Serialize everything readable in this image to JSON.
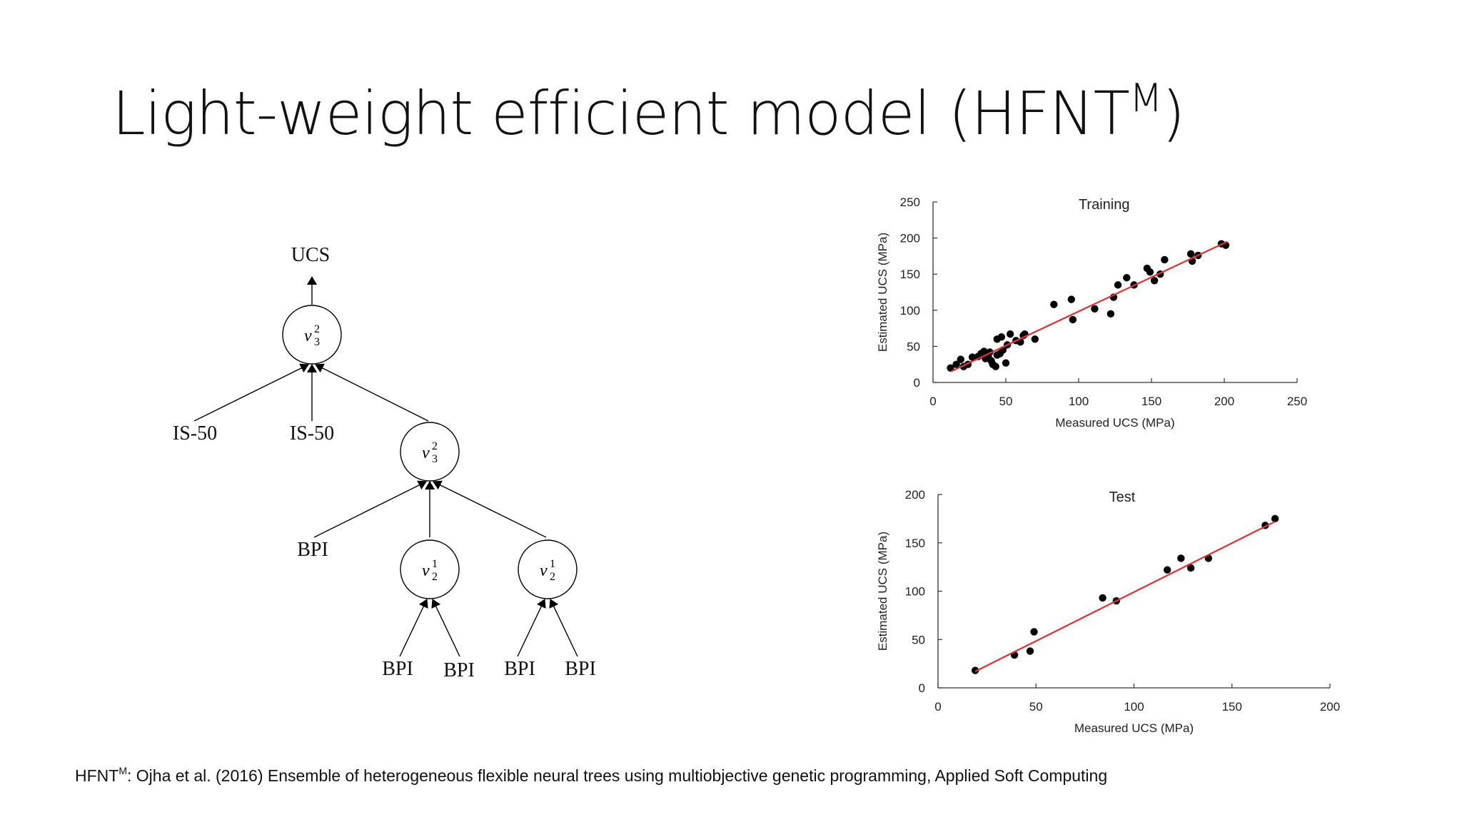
{
  "title": {
    "main": "Light-weight efficient model (HFNT",
    "sup": "M",
    "close": ")"
  },
  "tree": {
    "root_label": "UCS",
    "nodes": {
      "root": {
        "v": "v",
        "sup": "2",
        "sub": "3"
      },
      "mid": {
        "v": "v",
        "sup": "2",
        "sub": "3"
      },
      "left": {
        "v": "v",
        "sup": "1",
        "sub": "2"
      },
      "right": {
        "v": "v",
        "sup": "1",
        "sub": "2"
      }
    },
    "leaves": {
      "is1": "IS-50",
      "is2": "IS-50",
      "bpi_mid": "BPI",
      "bpi_l1": "BPI",
      "bpi_l2": "BPI",
      "bpi_r1": "BPI",
      "bpi_r2": "BPI"
    }
  },
  "chart_data": [
    {
      "type": "scatter",
      "title": "Training",
      "xlabel": "Measured UCS (MPa)",
      "ylabel": "Estimated UCS (MPa)",
      "xlim": [
        0,
        250
      ],
      "ylim": [
        0,
        250
      ],
      "xticks": [
        0,
        50,
        100,
        150,
        200,
        250
      ],
      "yticks": [
        0,
        50,
        100,
        150,
        200,
        250
      ],
      "fit_line": {
        "x": [
          12,
          202
        ],
        "y": [
          15,
          195
        ],
        "color": "#e53030"
      },
      "point_color": "#000000",
      "grid": false,
      "points": [
        [
          12,
          20
        ],
        [
          16,
          25
        ],
        [
          19,
          32
        ],
        [
          21,
          22
        ],
        [
          24,
          25
        ],
        [
          27,
          35
        ],
        [
          31,
          36
        ],
        [
          33,
          40
        ],
        [
          35,
          43
        ],
        [
          36,
          33
        ],
        [
          38,
          35
        ],
        [
          39,
          42
        ],
        [
          40,
          30
        ],
        [
          41,
          25
        ],
        [
          43,
          22
        ],
        [
          44,
          38
        ],
        [
          44,
          60
        ],
        [
          46,
          40
        ],
        [
          47,
          63
        ],
        [
          48,
          45
        ],
        [
          50,
          27
        ],
        [
          51,
          52
        ],
        [
          53,
          67
        ],
        [
          57,
          58
        ],
        [
          60,
          56
        ],
        [
          62,
          65
        ],
        [
          63,
          67
        ],
        [
          70,
          60
        ],
        [
          83,
          108
        ],
        [
          95,
          115
        ],
        [
          96,
          87
        ],
        [
          111,
          102
        ],
        [
          122,
          95
        ],
        [
          124,
          118
        ],
        [
          127,
          135
        ],
        [
          133,
          145
        ],
        [
          138,
          135
        ],
        [
          147,
          158
        ],
        [
          149,
          153
        ],
        [
          152,
          141
        ],
        [
          156,
          150
        ],
        [
          159,
          170
        ],
        [
          177,
          178
        ],
        [
          178,
          168
        ],
        [
          182,
          176
        ],
        [
          198,
          192
        ],
        [
          201,
          190
        ]
      ]
    },
    {
      "type": "scatter",
      "title": "Test",
      "xlabel": "Measured UCS (MPa)",
      "ylabel": "Estimated UCS (MPa)",
      "xlim": [
        0,
        200
      ],
      "ylim": [
        0,
        200
      ],
      "xticks": [
        0,
        50,
        100,
        150,
        200
      ],
      "yticks": [
        0,
        50,
        100,
        150,
        200
      ],
      "fit_line": {
        "x": [
          19,
          172
        ],
        "y": [
          17,
          172
        ],
        "color": "#e53030"
      },
      "point_color": "#000000",
      "grid": false,
      "points": [
        [
          19,
          18
        ],
        [
          39,
          34
        ],
        [
          47,
          38
        ],
        [
          49,
          58
        ],
        [
          84,
          93
        ],
        [
          91,
          90
        ],
        [
          117,
          122
        ],
        [
          124,
          134
        ],
        [
          129,
          124
        ],
        [
          138,
          134
        ],
        [
          167,
          168
        ],
        [
          172,
          175
        ]
      ]
    }
  ],
  "footnote": {
    "prefix": "HFNT",
    "sup": "M",
    "text": ": Ojha et al. (2016) Ensemble of heterogeneous flexible neural trees using multiobjective genetic programming, Applied Soft Computing"
  }
}
